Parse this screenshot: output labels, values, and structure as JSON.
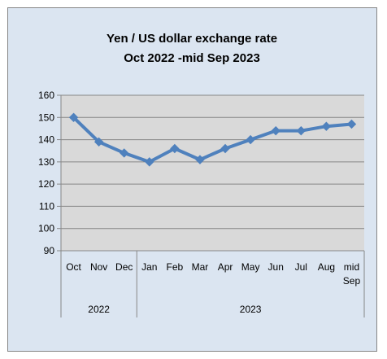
{
  "chart_data": {
    "type": "line",
    "title": "Yen / US dollar exchange rate",
    "subtitle": "Oct 2022 -mid Sep 2023",
    "categories": [
      "Oct",
      "Nov",
      "Dec",
      "Jan",
      "Feb",
      "Mar",
      "Apr",
      "May",
      "Jun",
      "Jul",
      "Aug",
      "mid Sep"
    ],
    "year_groups": [
      {
        "label": "2022",
        "count": 3
      },
      {
        "label": "2023",
        "count": 9
      }
    ],
    "values": [
      150,
      139,
      134,
      130,
      136,
      131,
      136,
      140,
      144,
      144,
      146,
      147
    ],
    "ylim": [
      90,
      160
    ],
    "yticks": [
      90,
      100,
      110,
      120,
      130,
      140,
      150,
      160
    ],
    "grid": true,
    "legend": "none",
    "colors": {
      "line": "#4f81bd",
      "plot_background": "#d9d9d9",
      "chart_background": "#dbe5f1",
      "gridline": "#868686"
    }
  }
}
